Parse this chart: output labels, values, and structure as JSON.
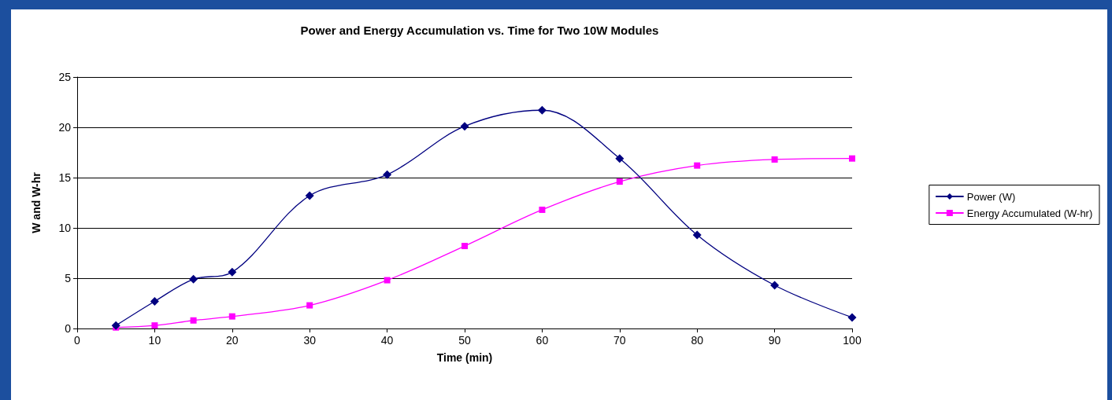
{
  "chart_data": {
    "type": "line",
    "title": "Power and Energy Accumulation vs. Time for Two 10W Modules",
    "xlabel": "Time (min)",
    "ylabel": "W and W-hr",
    "x": [
      5,
      10,
      15,
      20,
      30,
      40,
      50,
      60,
      70,
      80,
      90,
      100
    ],
    "xlim": [
      0,
      100
    ],
    "xticks": [
      0,
      10,
      20,
      30,
      40,
      50,
      60,
      70,
      80,
      90,
      100
    ],
    "ylim": [
      0,
      25
    ],
    "yticks": [
      0,
      5,
      10,
      15,
      20,
      25
    ],
    "grid": "y",
    "legend": "right",
    "line_style": "solid",
    "series": [
      {
        "name": "Power (W)",
        "color": "#000080",
        "marker": "diamond",
        "values": [
          0.3,
          2.7,
          4.9,
          5.6,
          13.2,
          15.3,
          20.1,
          21.7,
          16.9,
          9.3,
          4.3,
          1.1
        ]
      },
      {
        "name": "Energy Accumulated (W-hr)",
        "color": "#ff00ff",
        "marker": "square",
        "values": [
          0.1,
          0.3,
          0.8,
          1.2,
          2.3,
          4.8,
          8.2,
          11.8,
          14.6,
          16.2,
          16.8,
          16.9
        ]
      }
    ]
  }
}
